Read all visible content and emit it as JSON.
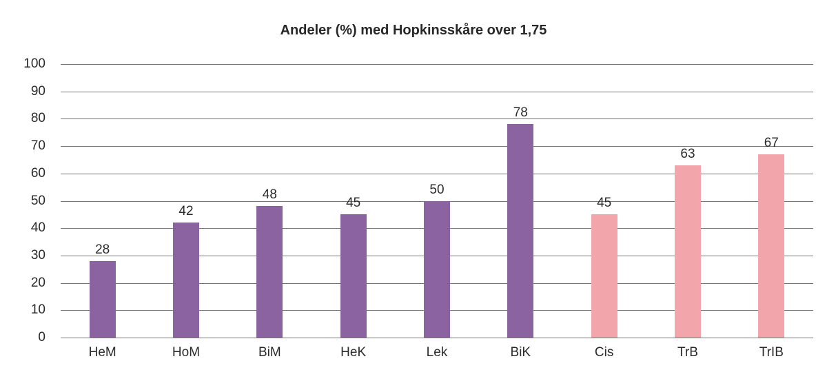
{
  "page": {
    "background_color": "#ffffff"
  },
  "colors": {
    "purple_bar": "#8c63a1",
    "pink_bar": "#f3a5ac",
    "gridline": "#737373",
    "text": "#2b2b2b",
    "title_text": "#282828"
  },
  "chart_data": {
    "type": "bar",
    "title": "Andeler (%) med Hopkinsskåre over 1,75",
    "xlabel": "",
    "ylabel": "",
    "categories": [
      "HeM",
      "HoM",
      "BiM",
      "HeK",
      "Lek",
      "BiK",
      "Cis",
      "TrB",
      "TrIB"
    ],
    "values": [
      28,
      42,
      48,
      45,
      50,
      78,
      45,
      63,
      67
    ],
    "bar_color_groups": [
      "purple",
      "purple",
      "purple",
      "purple",
      "purple",
      "purple",
      "pink",
      "pink",
      "pink"
    ],
    "value_labels_shown": true,
    "value_label_position": "above bars",
    "ylim": [
      0,
      100
    ],
    "ytick_interval": 10,
    "ytick_labels": [
      "0",
      "10",
      "20",
      "30",
      "40",
      "50",
      "60",
      "70",
      "80",
      "90",
      "100"
    ],
    "grid": "horizontal gridlines at every 10",
    "legend_position": "none"
  }
}
